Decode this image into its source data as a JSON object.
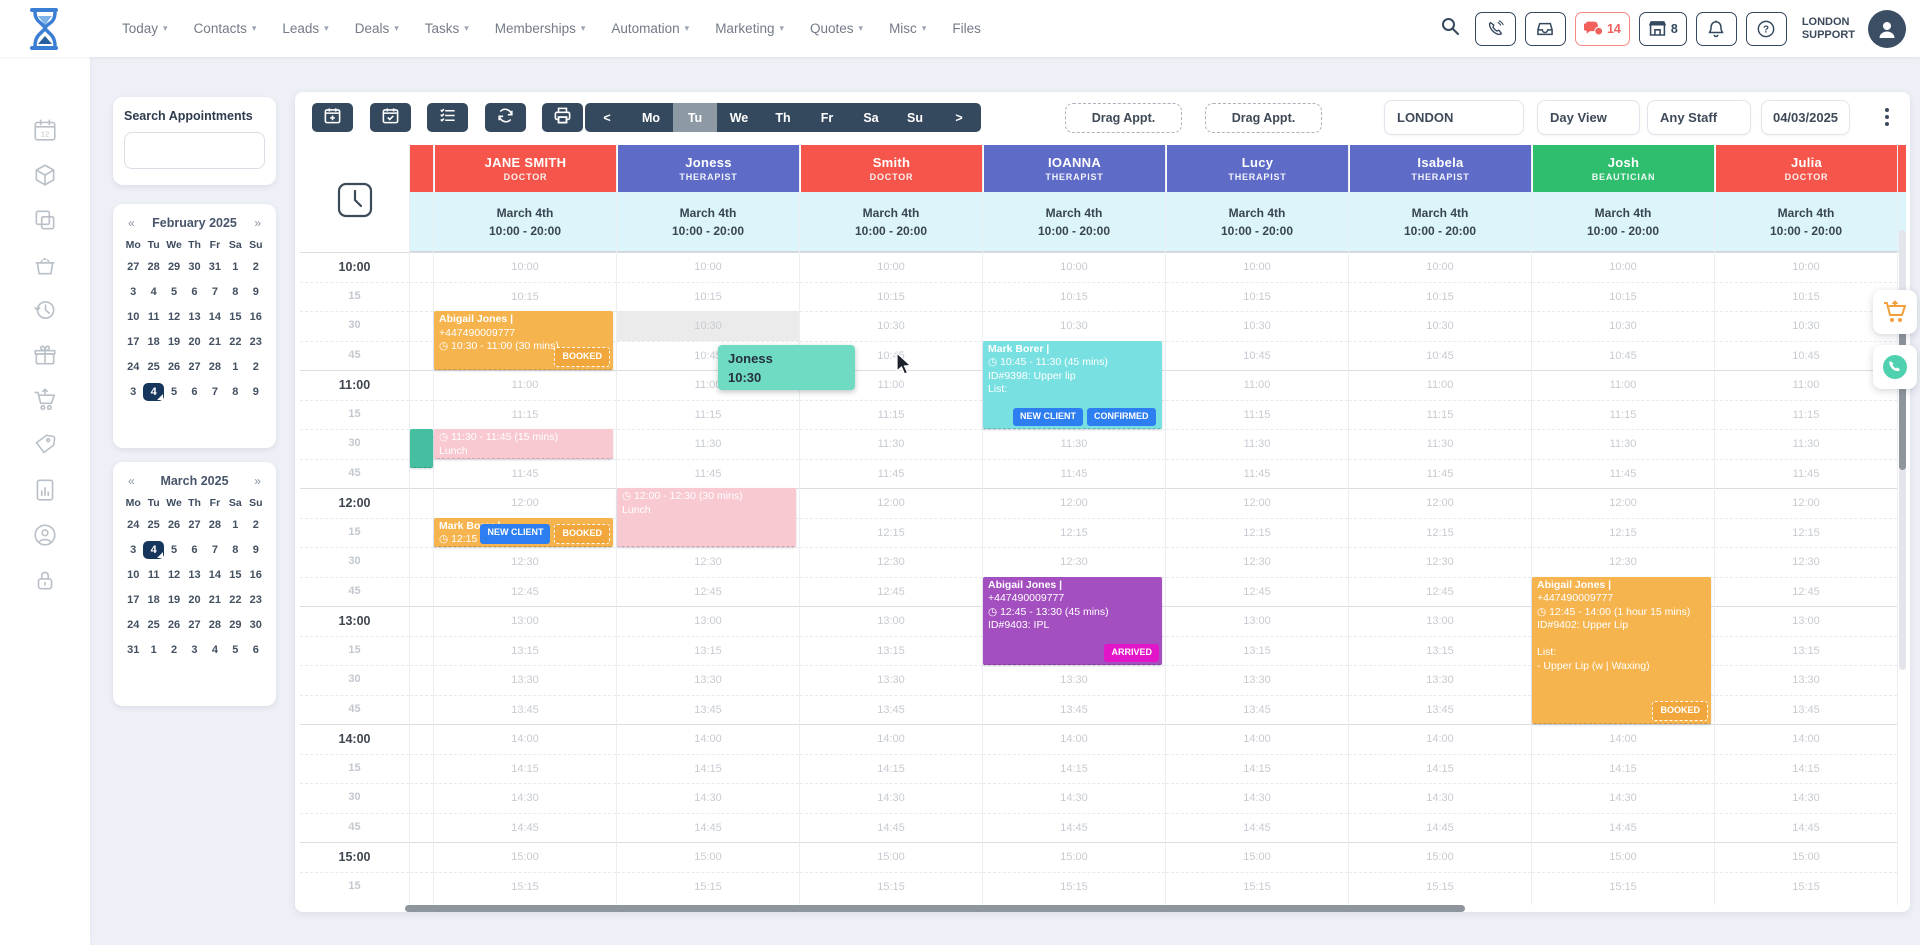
{
  "topnav": {
    "items": [
      {
        "label": "Today",
        "chevron": true
      },
      {
        "label": "Contacts",
        "chevron": true
      },
      {
        "label": "Leads",
        "chevron": true
      },
      {
        "label": "Deals",
        "chevron": true
      },
      {
        "label": "Tasks",
        "chevron": true
      },
      {
        "label": "Memberships",
        "chevron": true
      },
      {
        "label": "Automation",
        "chevron": true
      },
      {
        "label": "Marketing",
        "chevron": true
      },
      {
        "label": "Quotes",
        "chevron": true
      },
      {
        "label": "Misc",
        "chevron": true
      },
      {
        "label": "Files",
        "chevron": false
      }
    ],
    "chat_count": "14",
    "store_count": "8",
    "account_line1": "LONDON",
    "account_line2": "SUPPORT"
  },
  "sidebar": {
    "icons": [
      "calendar-12-icon",
      "cube-icon",
      "copy-icon",
      "basket-icon",
      "history-icon",
      "gift-icon",
      "cart-icon",
      "tag-icon",
      "report-icon",
      "agent-icon",
      "lock-icon"
    ]
  },
  "search_panel": {
    "label": "Search Appointments",
    "value": ""
  },
  "mini_calendars": [
    {
      "title": "February 2025",
      "prev": "«",
      "next": "»",
      "dows": [
        "Mo",
        "Tu",
        "We",
        "Th",
        "Fr",
        "Sa",
        "Su"
      ],
      "weeks": [
        [
          "27",
          "28",
          "29",
          "30",
          "31",
          "1",
          "2"
        ],
        [
          "3",
          "4",
          "5",
          "6",
          "7",
          "8",
          "9"
        ],
        [
          "10",
          "11",
          "12",
          "13",
          "14",
          "15",
          "16"
        ],
        [
          "17",
          "18",
          "19",
          "20",
          "21",
          "22",
          "23"
        ],
        [
          "24",
          "25",
          "26",
          "27",
          "28",
          "1",
          "2"
        ],
        [
          "3",
          "4",
          "5",
          "6",
          "7",
          "8",
          "9"
        ]
      ],
      "selected": {
        "week": 5,
        "day": 1
      }
    },
    {
      "title": "March 2025",
      "prev": "«",
      "next": "»",
      "dows": [
        "Mo",
        "Tu",
        "We",
        "Th",
        "Fr",
        "Sa",
        "Su"
      ],
      "weeks": [
        [
          "24",
          "25",
          "26",
          "27",
          "28",
          "1",
          "2"
        ],
        [
          "3",
          "4",
          "5",
          "6",
          "7",
          "8",
          "9"
        ],
        [
          "10",
          "11",
          "12",
          "13",
          "14",
          "15",
          "16"
        ],
        [
          "17",
          "18",
          "19",
          "20",
          "21",
          "22",
          "23"
        ],
        [
          "24",
          "25",
          "26",
          "27",
          "28",
          "29",
          "30"
        ],
        [
          "31",
          "1",
          "2",
          "3",
          "4",
          "5",
          "6"
        ]
      ],
      "selected": {
        "week": 1,
        "day": 1
      }
    }
  ],
  "toolbar": {
    "icon_buttons": [
      "calendar-plus-icon",
      "calendar-check-icon",
      "checklist-icon",
      "refresh-icon",
      "printer-icon"
    ],
    "day_nav": [
      "<",
      "Mo",
      "Tu",
      "We",
      "Th",
      "Fr",
      "Sa",
      "Su",
      ">"
    ],
    "selected_day": "Tu",
    "drag_appt_1": "Drag Appt.",
    "drag_appt_2": "Drag Appt.",
    "location_select": "LONDON",
    "view_select": "Day View",
    "staff_select": "Any Staff",
    "date_value": "04/03/2025"
  },
  "colors": {
    "doctor": "#f5554a",
    "therapist": "#5e6bc7",
    "beautician": "#2fbe6e",
    "subheader": "#dbf5fa",
    "appt_orange": "#f6b44e",
    "appt_pink": "#f9c9d2",
    "appt_cyan": "#79e0e2",
    "appt_purple": "#a44fc0",
    "appt_teal": "#45bfa0",
    "badge_blue": "#2d7ef0",
    "badge_magenta": "#e215c9",
    "toolbar_dark": "#35495e"
  },
  "schedule": {
    "columns": [
      {
        "name": "JANE SMITH",
        "role": "DOCTOR",
        "color": "doctor",
        "date": "March 4th",
        "hours": "10:00 - 20:00"
      },
      {
        "name": "Joness",
        "role": "THERAPIST",
        "color": "therapist",
        "date": "March 4th",
        "hours": "10:00 - 20:00"
      },
      {
        "name": "Smith",
        "role": "DOCTOR",
        "color": "doctor",
        "date": "March 4th",
        "hours": "10:00 - 20:00"
      },
      {
        "name": "IOANNA",
        "role": "THERAPIST",
        "color": "therapist",
        "date": "March 4th",
        "hours": "10:00 - 20:00"
      },
      {
        "name": "Lucy",
        "role": "THERAPIST",
        "color": "therapist",
        "date": "March 4th",
        "hours": "10:00 - 20:00"
      },
      {
        "name": "Isabela",
        "role": "THERAPIST",
        "color": "therapist",
        "date": "March 4th",
        "hours": "10:00 - 20:00"
      },
      {
        "name": "Josh",
        "role": "BEAUTICIAN",
        "color": "beautician",
        "date": "March 4th",
        "hours": "10:00 - 20:00"
      },
      {
        "name": "Julia",
        "role": "DOCTOR",
        "color": "doctor",
        "date": "March 4th",
        "hours": "10:00 - 20:00"
      }
    ],
    "times": [
      "10:00",
      "10:15",
      "10:30",
      "10:45",
      "11:00",
      "11:15",
      "11:30",
      "11:45",
      "12:00",
      "12:15",
      "12:30",
      "12:45",
      "13:00",
      "13:15",
      "13:30",
      "13:45",
      "14:00",
      "14:15",
      "14:30",
      "14:45",
      "15:00",
      "15:15"
    ],
    "highlight_cell": {
      "column": 1,
      "time": "10:30"
    },
    "appointments": [
      {
        "column": 0,
        "start": "10:30",
        "end": "11:00",
        "color": "appt_orange",
        "bold_first": true,
        "lines": [
          "Abigail Jones |",
          "+447490009777",
          "◷ 10:30 - 11:00 (30 mins)"
        ],
        "badges": [
          {
            "label": "BOOKED",
            "style": "booked"
          }
        ],
        "badge_align": "right"
      },
      {
        "column": 0,
        "start": "11:30",
        "end": "11:45",
        "color": "appt_pink",
        "bold_first": false,
        "lines": [
          "◷ 11:30 - 11:45 (15 mins)",
          "Lunch"
        ],
        "badges": [],
        "badge_align": "right"
      },
      {
        "column": 0,
        "start": "12:15",
        "end": "12:30",
        "color": "appt_orange",
        "bold_first": true,
        "lines": [
          "Mark Borer |",
          "◷ 12:15 -"
        ],
        "badges": [
          {
            "label": "NEW CLIENT",
            "style": "blue"
          },
          {
            "label": "BOOKED",
            "style": "booked"
          }
        ],
        "badge_align": "right"
      },
      {
        "column": 1,
        "start": "12:00",
        "end": "12:30",
        "color": "appt_pink",
        "bold_first": false,
        "lines": [
          "◷ 12:00 - 12:30 (30 mins)",
          "Lunch"
        ],
        "badges": [],
        "badge_align": "right"
      },
      {
        "column": 3,
        "start": "10:45",
        "end": "11:30",
        "color": "appt_cyan",
        "bold_first": true,
        "lines": [
          "Mark Borer |",
          "◷ 10:45 - 11:30 (45 mins)",
          "ID#9398: Upper lip",
          "List:"
        ],
        "badges": [
          {
            "label": "NEW CLIENT",
            "style": "blue"
          },
          {
            "label": "CONFIRMED",
            "style": "blue"
          }
        ],
        "badge_align": "left"
      },
      {
        "column": 3,
        "start": "12:45",
        "end": "13:30",
        "color": "appt_purple",
        "bold_first": true,
        "lines": [
          "Abigail Jones |",
          "+447490009777",
          "◷ 12:45 - 13:30 (45 mins)",
          "ID#9403: IPL"
        ],
        "badges": [
          {
            "label": "ARRIVED",
            "style": "magenta"
          }
        ],
        "badge_align": "right"
      },
      {
        "column": 6,
        "start": "12:45",
        "end": "14:00",
        "color": "appt_orange",
        "bold_first": true,
        "lines": [
          "Abigail Jones |",
          "+447490009777",
          "◷ 12:45 - 14:00 (1 hour 15 mins)",
          "ID#9402: Upper Lip",
          "",
          "List:",
          "- Upper Lip (w | Waxing)"
        ],
        "badges": [
          {
            "label": "BOOKED",
            "style": "booked"
          }
        ],
        "badge_align": "right"
      }
    ],
    "partial_left_block": {
      "start": "11:30",
      "end": "11:50",
      "color": "appt_teal"
    }
  },
  "drag_ghost": {
    "line1": "Joness",
    "line2": "10:30"
  }
}
